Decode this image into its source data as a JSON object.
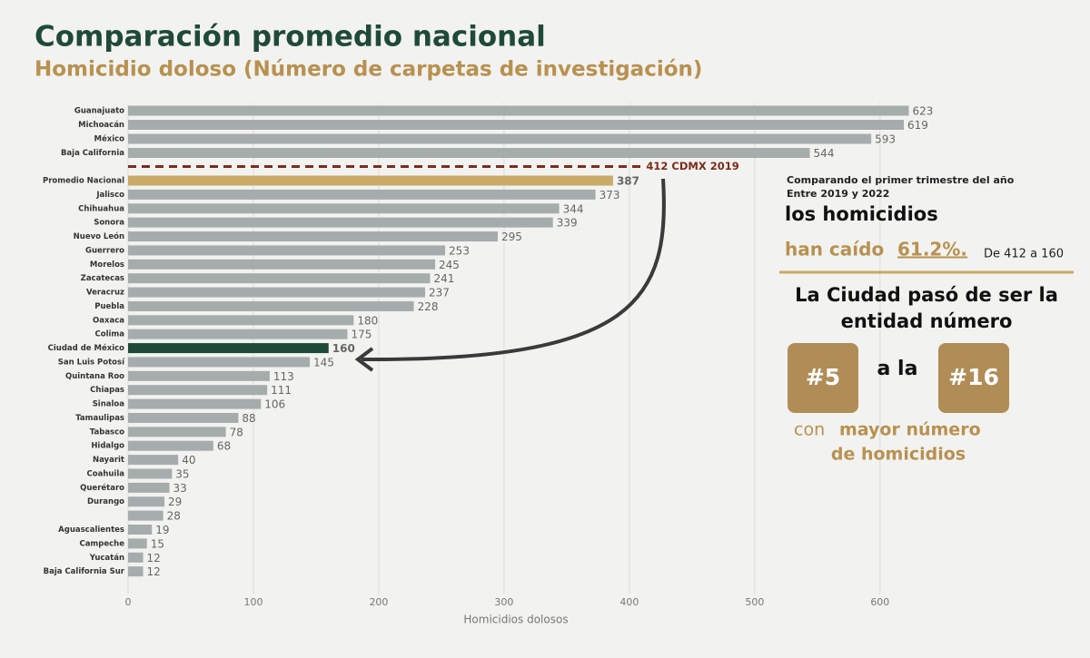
{
  "chart_data": {
    "type": "barh",
    "title": "Comparación promedio nacional",
    "subtitle": "Homicidio doloso (Número de carpetas de investigación)",
    "x_label": "Homicidios dolosos",
    "categories": [
      "Guanajuato",
      "Michoacán",
      "México",
      "Baja California",
      "Promedio Nacional",
      "Jalisco",
      "Chihuahua",
      "Sonora",
      "Nuevo León",
      "Guerrero",
      "Morelos",
      "Zacatecas",
      "Veracruz",
      "Puebla",
      "Oaxaca",
      "Colima",
      "Ciudad de México",
      "San Luis Potosí",
      "Quintana Roo",
      "Chiapas",
      "Sinaloa",
      "Tamaulipas",
      "Tabasco",
      "Hidalgo",
      "Nayarit",
      "Coahuila",
      "Querétaro",
      "Durango",
      null,
      "Aguascalientes",
      "Campeche",
      "Yucatán",
      "Baja California Sur"
    ],
    "values": [
      623,
      619,
      593,
      544,
      387,
      373,
      344,
      339,
      295,
      253,
      245,
      241,
      237,
      228,
      180,
      175,
      160,
      145,
      113,
      111,
      106,
      88,
      78,
      68,
      40,
      35,
      33,
      29,
      28,
      19,
      15,
      12,
      12
    ],
    "colors": [
      "#a6acab",
      "#a6acab",
      "#a6acab",
      "#a6acab",
      "#c9aa66",
      "#a6acab",
      "#a6acab",
      "#a6acab",
      "#a6acab",
      "#a6acab",
      "#a6acab",
      "#a6acab",
      "#a6acab",
      "#a6acab",
      "#a6acab",
      "#a6acab",
      "#1f4a39",
      "#a6acab",
      "#a6acab",
      "#a6acab",
      "#a6acab",
      "#a6acab",
      "#a6acab",
      "#a6acab",
      "#a6acab",
      "#a6acab",
      "#a6acab",
      "#a6acab",
      "#a6acab",
      "#a6acab",
      "#a6acab",
      "#a6acab",
      "#a6acab"
    ],
    "color": "#a6acab",
    "xlim": [
      0,
      640
    ],
    "xticks": [
      0,
      100,
      200,
      300,
      400,
      500,
      600
    ],
    "grid": true,
    "reference_line": {
      "value": 412,
      "label": "412 CDMX 2019",
      "color": "#7b2b1b"
    },
    "annotations": {
      "intro": "Comparando el primer trimestre del año",
      "intro2": "Entre 2019 y 2022",
      "headline": "los homicidios",
      "fall_prefix": "han caído",
      "fall_value": "61.2%.",
      "fall_note": "De 412 a 160",
      "rank_line1": "La Ciudad pasó de ser la",
      "rank_line2": "entidad número",
      "from": "#5",
      "connector": "a la",
      "to": "#16",
      "closing_prefix": "con",
      "closing_bold1": "mayor número",
      "closing_bold2": "de homicidios"
    }
  }
}
